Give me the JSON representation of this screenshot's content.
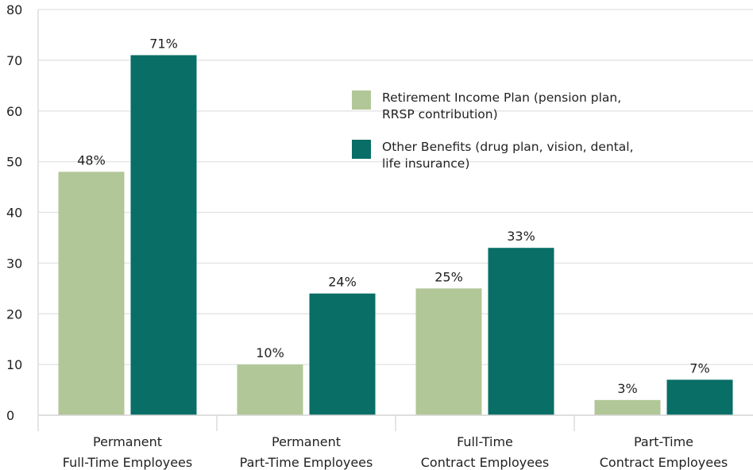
{
  "chart_data": {
    "type": "bar",
    "categories": [
      [
        "Permanent",
        "Full-Time Employees"
      ],
      [
        "Permanent",
        "Part-Time Employees"
      ],
      [
        "Full-Time",
        "Contract Employees"
      ],
      [
        "Part-Time",
        "Contract Employees"
      ]
    ],
    "series": [
      {
        "name": [
          "Retirement Income Plan (pension plan,",
          "RRSP contribution)"
        ],
        "color": "#b1c797",
        "values": [
          48,
          10,
          25,
          3
        ],
        "labels": [
          "48%",
          "10%",
          "25%",
          "3%"
        ]
      },
      {
        "name": [
          "Other Benefits (drug plan, vision, dental,",
          "life insurance)"
        ],
        "color": "#086e66",
        "values": [
          71,
          24,
          33,
          7
        ],
        "labels": [
          "71%",
          "24%",
          "33%",
          "7%"
        ]
      }
    ],
    "yticks": [
      0,
      10,
      20,
      30,
      40,
      50,
      60,
      70,
      80
    ],
    "ylim": [
      0,
      80
    ],
    "grid": true,
    "legend_position": "top-right"
  }
}
